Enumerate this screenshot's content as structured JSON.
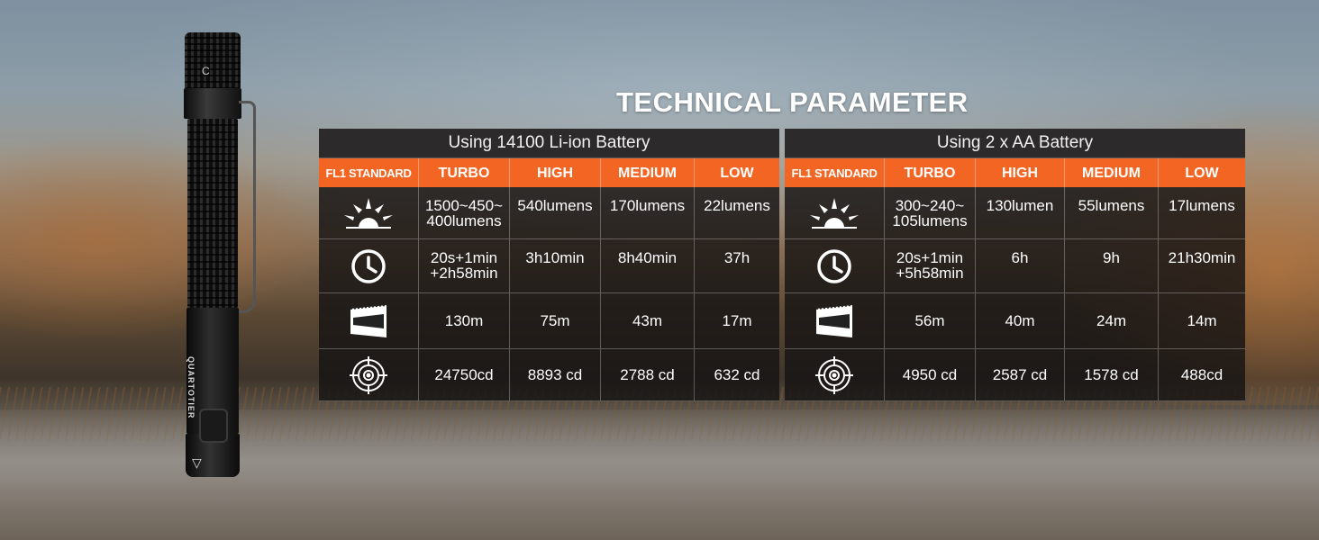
{
  "title": "TECHNICAL PARAMETER",
  "product": {
    "brand_mark": "QUARTOTIER",
    "model_mark": "C",
    "logo_glyph": "▽"
  },
  "header_color": "#f26522",
  "columns": [
    "FL1 STANDARD",
    "TURBO",
    "HIGH",
    "MEDIUM",
    "LOW"
  ],
  "row_icons": [
    "brightness-icon",
    "runtime-clock-icon",
    "beam-distance-icon",
    "intensity-target-icon"
  ],
  "tables": [
    {
      "battery_label": "Using 14100 Li-ion Battery",
      "rows": [
        [
          "1500~450~\n400lumens",
          "540lumens",
          "170lumens",
          "22lumens"
        ],
        [
          "20s+1min\n+2h58min",
          "3h10min",
          "8h40min",
          "37h"
        ],
        [
          "130m",
          "75m",
          "43m",
          "17m"
        ],
        [
          "24750cd",
          "8893 cd",
          "2788 cd",
          "632 cd"
        ]
      ]
    },
    {
      "battery_label": "Using 2 x AA Battery",
      "rows": [
        [
          "300~240~\n105lumens",
          "130lumen",
          "55lumens",
          "17lumens"
        ],
        [
          "20s+1min\n+5h58min",
          "6h",
          "9h",
          "21h30min"
        ],
        [
          "56m",
          "40m",
          "24m",
          "14m"
        ],
        [
          "4950 cd",
          "2587 cd",
          "1578 cd",
          "488cd"
        ]
      ]
    }
  ]
}
